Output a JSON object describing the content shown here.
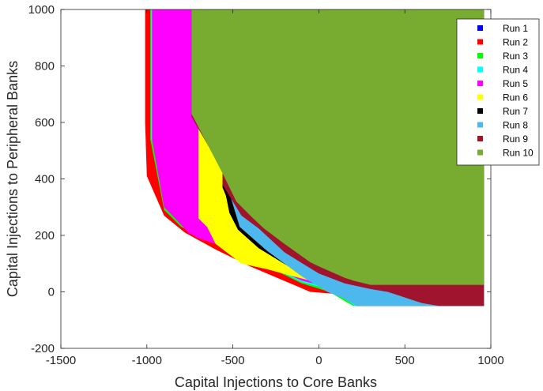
{
  "chart_data": {
    "type": "area",
    "xlabel": "Capital Injections to Core Banks",
    "ylabel": "Capital Injections to Peripheral Banks",
    "xlim": [
      -1500,
      1000
    ],
    "ylim": [
      -200,
      1000
    ],
    "xticks": [
      -1500,
      -1000,
      -500,
      0,
      500,
      1000
    ],
    "yticks": [
      -200,
      0,
      200,
      400,
      600,
      800,
      1000
    ],
    "grid": false,
    "legend_position": "top-right",
    "series": [
      {
        "name": "Run 1",
        "color": "#0000ff",
        "points": [
          [
            960,
            -50
          ],
          [
            960,
            -45
          ],
          [
            955,
            -45
          ],
          [
            955,
            -50
          ]
        ]
      },
      {
        "name": "Run 2",
        "color": "#ff0000",
        "points": [
          [
            -1010,
            1000
          ],
          [
            960,
            1000
          ],
          [
            960,
            -50
          ],
          [
            -50,
            0
          ],
          [
            -400,
            90
          ],
          [
            -600,
            150
          ],
          [
            -780,
            210
          ],
          [
            -900,
            270
          ],
          [
            -1000,
            410
          ],
          [
            -1010,
            600
          ]
        ]
      },
      {
        "name": "Run 3",
        "color": "#00ff00",
        "points": [
          [
            -980,
            1000
          ],
          [
            960,
            1000
          ],
          [
            960,
            -50
          ],
          [
            200,
            -50
          ],
          [
            60,
            0
          ],
          [
            -100,
            30
          ],
          [
            -300,
            90
          ],
          [
            -500,
            150
          ],
          [
            -700,
            200
          ],
          [
            -800,
            230
          ],
          [
            -900,
            290
          ],
          [
            -980,
            540
          ]
        ]
      },
      {
        "name": "Run 4",
        "color": "#00ffff",
        "points": [
          [
            -975,
            1000
          ],
          [
            960,
            1000
          ],
          [
            960,
            -50
          ],
          [
            210,
            -50
          ],
          [
            80,
            5
          ],
          [
            -100,
            35
          ],
          [
            -300,
            92
          ],
          [
            -500,
            150
          ],
          [
            -975,
            540
          ]
        ]
      },
      {
        "name": "Run 5",
        "color": "#ff00ff",
        "points": [
          [
            -970,
            1000
          ],
          [
            960,
            1000
          ],
          [
            960,
            -50
          ],
          [
            220,
            -50
          ],
          [
            100,
            10
          ],
          [
            -100,
            40
          ],
          [
            -300,
            95
          ],
          [
            -550,
            160
          ],
          [
            -700,
            190
          ],
          [
            -760,
            210
          ],
          [
            -820,
            250
          ],
          [
            -900,
            300
          ],
          [
            -970,
            540
          ]
        ]
      },
      {
        "name": "Run 6",
        "color": "#ffff00",
        "points": [
          [
            -740,
            1000
          ],
          [
            960,
            1000
          ],
          [
            960,
            -50
          ],
          [
            220,
            -50
          ],
          [
            100,
            10
          ],
          [
            -50,
            40
          ],
          [
            -150,
            55
          ],
          [
            -300,
            80
          ],
          [
            -450,
            100
          ],
          [
            -600,
            170
          ],
          [
            -650,
            230
          ],
          [
            -700,
            260
          ],
          [
            -700,
            590
          ],
          [
            -740,
            630
          ]
        ]
      },
      {
        "name": "Run 7",
        "color": "#000000",
        "points": [
          [
            -740,
            1000
          ],
          [
            960,
            1000
          ],
          [
            960,
            -50
          ],
          [
            220,
            -50
          ],
          [
            0,
            40
          ],
          [
            -150,
            80
          ],
          [
            -350,
            155
          ],
          [
            -470,
            220
          ],
          [
            -520,
            280
          ],
          [
            -540,
            340
          ],
          [
            -560,
            370
          ],
          [
            -560,
            430
          ],
          [
            -740,
            620
          ]
        ]
      },
      {
        "name": "Run 8",
        "color": "#4db8ee",
        "points": [
          [
            -740,
            1000
          ],
          [
            960,
            1000
          ],
          [
            960,
            -50
          ],
          [
            220,
            -50
          ],
          [
            150,
            -25
          ],
          [
            50,
            0
          ],
          [
            -100,
            55
          ],
          [
            -300,
            145
          ],
          [
            -460,
            230
          ],
          [
            -540,
            390
          ],
          [
            -550,
            430
          ],
          [
            -740,
            620
          ]
        ]
      },
      {
        "name": "Run 9",
        "color": "#a0142e",
        "points": [
          [
            -740,
            1000
          ],
          [
            960,
            1000
          ],
          [
            960,
            -50
          ],
          [
            700,
            -50
          ],
          [
            600,
            -40
          ],
          [
            500,
            -20
          ],
          [
            400,
            0
          ],
          [
            300,
            10
          ],
          [
            150,
            30
          ],
          [
            0,
            65
          ],
          [
            -200,
            140
          ],
          [
            -350,
            225
          ],
          [
            -450,
            270
          ],
          [
            -560,
            380
          ],
          [
            -560,
            430
          ],
          [
            -740,
            620
          ]
        ]
      },
      {
        "name": "Run 10",
        "color": "#77ac30",
        "points": [
          [
            -740,
            1000
          ],
          [
            960,
            1000
          ],
          [
            960,
            25
          ],
          [
            300,
            25
          ],
          [
            200,
            40
          ],
          [
            150,
            50
          ],
          [
            0,
            90
          ],
          [
            -50,
            105
          ],
          [
            -200,
            170
          ],
          [
            -320,
            225
          ],
          [
            -390,
            265
          ],
          [
            -480,
            320
          ],
          [
            -560,
            420
          ],
          [
            -740,
            630
          ]
        ]
      }
    ]
  }
}
